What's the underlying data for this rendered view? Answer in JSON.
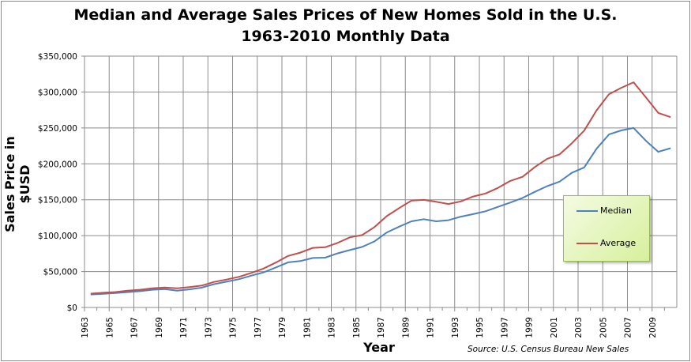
{
  "chart_data": {
    "type": "line",
    "title": "Median and Average Sales Prices of New Homes Sold in the U.S.",
    "subtitle": "1963-2010 Monthly Data",
    "xlabel": "Year",
    "ylabel": "Sales Price in $USD",
    "source": "Source:  U.S. Census Bureau New Sales",
    "xlim": [
      1963,
      2011
    ],
    "ylim": [
      0,
      350000
    ],
    "y_ticks": [
      "$0",
      "$50,000",
      "$100,000",
      "$150,000",
      "$200,000",
      "$250,000",
      "$300,000",
      "$350,000"
    ],
    "x_ticks": [
      "1963",
      "1965",
      "1967",
      "1969",
      "1971",
      "1973",
      "1975",
      "1977",
      "1979",
      "1981",
      "1983",
      "1985",
      "1987",
      "1989",
      "1991",
      "1993",
      "1995",
      "1997",
      "1999",
      "2001",
      "2003",
      "2005",
      "2007",
      "2009"
    ],
    "grid": true,
    "legend_position": "right",
    "x": [
      1963,
      1964,
      1965,
      1966,
      1967,
      1968,
      1969,
      1970,
      1971,
      1972,
      1973,
      1974,
      1975,
      1976,
      1977,
      1978,
      1979,
      1980,
      1981,
      1982,
      1983,
      1984,
      1985,
      1986,
      1987,
      1988,
      1989,
      1990,
      1991,
      1992,
      1993,
      1994,
      1995,
      1996,
      1997,
      1998,
      1999,
      2000,
      2001,
      2002,
      2003,
      2004,
      2005,
      2006,
      2007,
      2008,
      2009,
      2010
    ],
    "series": [
      {
        "name": "Median",
        "color": "#4f81bd",
        "values": [
          18000,
          18900,
          20000,
          21400,
          22700,
          24700,
          25600,
          23400,
          25200,
          27600,
          32500,
          35900,
          39300,
          44200,
          48800,
          55700,
          62900,
          64600,
          68900,
          69300,
          75300,
          79900,
          84300,
          92000,
          104500,
          112500,
          120000,
          122900,
          120000,
          121500,
          126500,
          130000,
          133900,
          140000,
          146000,
          152500,
          161000,
          169000,
          175200,
          187600,
          195000,
          221000,
          240900,
          246500,
          250000,
          232100,
          216700,
          221800
        ]
      },
      {
        "name": "Average",
        "color": "#c0504d",
        "values": [
          19300,
          20500,
          21500,
          23300,
          24600,
          26600,
          27900,
          26600,
          28300,
          30500,
          35500,
          38900,
          42600,
          48000,
          54200,
          62500,
          71800,
          76400,
          83000,
          83900,
          89800,
          97600,
          100800,
          111900,
          127200,
          138300,
          148800,
          149800,
          147200,
          144100,
          147700,
          154500,
          158700,
          166400,
          176200,
          181900,
          195600,
          207000,
          213200,
          228700,
          246300,
          274500,
          297000,
          305900,
          313600,
          292600,
          270900,
          265000
        ]
      }
    ]
  }
}
